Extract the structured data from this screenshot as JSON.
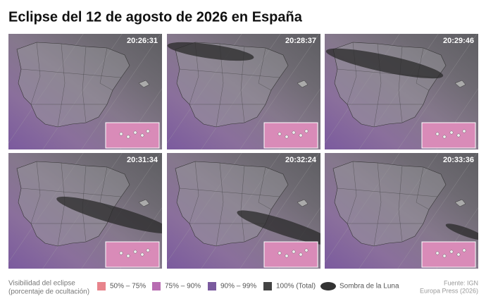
{
  "header": {
    "title": "Eclipse del 12 de agosto de 2026 en España"
  },
  "panels": [
    {
      "time": "20:26:31"
    },
    {
      "time": "20:28:37"
    },
    {
      "time": "20:29:46"
    },
    {
      "time": "20:31:34"
    },
    {
      "time": "20:32:24"
    },
    {
      "time": "20:33:36"
    }
  ],
  "legend": {
    "title": [
      "Visibilidad del eclipse",
      "(porcentaje de ocultación)"
    ],
    "items": [
      "50% – 75%",
      "75% – 90%",
      "90% – 99%",
      "100% (Total)",
      "Sombra de la Luna"
    ]
  },
  "source": [
    "Fuente: IGN",
    "Europa Press (2026)"
  ]
}
